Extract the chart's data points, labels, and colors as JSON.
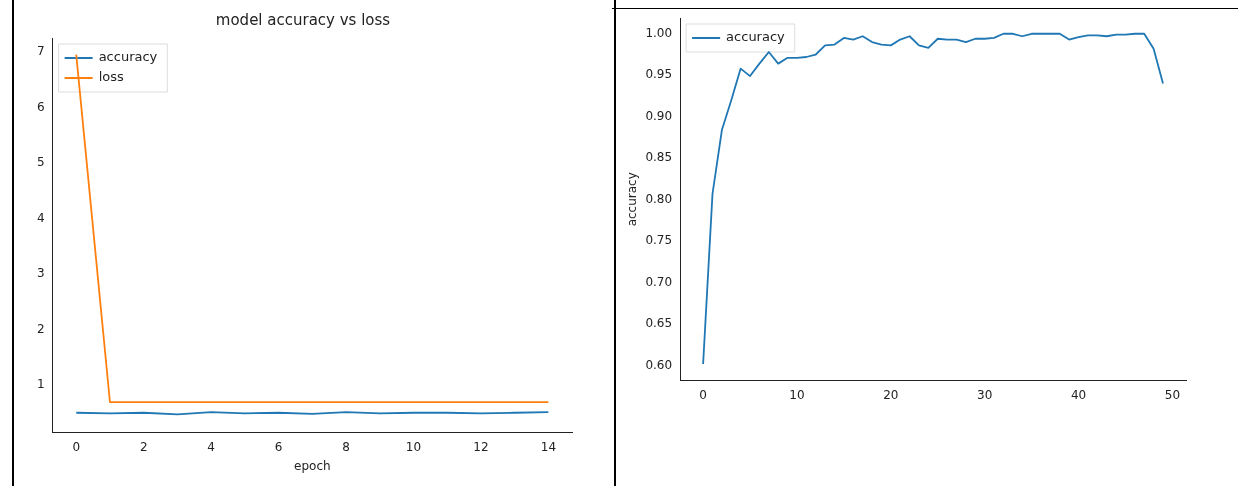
{
  "chart_data": [
    {
      "type": "line",
      "title": "model accuracy vs loss",
      "xlabel": "epoch",
      "x": [
        0,
        1,
        2,
        3,
        4,
        5,
        6,
        7,
        8,
        9,
        10,
        11,
        12,
        13,
        14
      ],
      "series": [
        {
          "name": "accuracy",
          "color": "#1f77b4",
          "values": [
            0.5,
            0.49,
            0.5,
            0.47,
            0.51,
            0.49,
            0.5,
            0.48,
            0.51,
            0.49,
            0.5,
            0.5,
            0.49,
            0.5,
            0.51
          ]
        },
        {
          "name": "loss",
          "color": "#ff7f0e",
          "values": [
            6.95,
            0.69,
            0.69,
            0.69,
            0.69,
            0.69,
            0.69,
            0.69,
            0.69,
            0.69,
            0.69,
            0.69,
            0.69,
            0.69,
            0.69
          ]
        }
      ],
      "xlim": [
        -0.7,
        14.7
      ],
      "xticks": [
        0,
        2,
        4,
        6,
        8,
        10,
        12,
        14
      ],
      "ylim": [
        0.15,
        7.25
      ],
      "yticks": [
        1,
        2,
        3,
        4,
        5,
        6,
        7
      ],
      "legend": "top left",
      "marker": "none",
      "line_style": "solid",
      "grid": false
    },
    {
      "type": "line",
      "ylabel": "accuracy",
      "x": [
        0,
        1,
        2,
        3,
        4,
        5,
        6,
        7,
        8,
        9,
        10,
        11,
        12,
        13,
        14,
        15,
        16,
        17,
        18,
        19,
        20,
        21,
        22,
        23,
        24,
        25,
        26,
        27,
        28,
        29,
        30,
        31,
        32,
        33,
        34,
        35,
        36,
        37,
        38,
        39,
        40,
        41,
        42,
        43,
        44,
        45,
        46,
        47,
        48,
        49
      ],
      "series": [
        {
          "name": "accuracy",
          "color": "#1f77b4",
          "values": [
            0.602,
            0.807,
            0.884,
            0.92,
            0.958,
            0.949,
            0.964,
            0.978,
            0.964,
            0.971,
            0.971,
            0.972,
            0.975,
            0.986,
            0.987,
            0.995,
            0.993,
            0.997,
            0.99,
            0.987,
            0.986,
            0.993,
            0.997,
            0.986,
            0.983,
            0.994,
            0.993,
            0.993,
            0.99,
            0.994,
            0.994,
            0.995,
            1.0,
            1.0,
            0.997,
            1.0,
            1.0,
            1.0,
            1.0,
            0.993,
            0.996,
            0.998,
            0.998,
            0.997,
            0.999,
            0.999,
            1.0,
            1.0,
            0.982,
            0.94
          ]
        }
      ],
      "xlim": [
        -2.45,
        51.45
      ],
      "xticks": [
        0,
        10,
        20,
        30,
        40,
        50
      ],
      "ylim": [
        0.582,
        1.019
      ],
      "yticks": [
        {
          "value": 0.6,
          "label": "0.60"
        },
        {
          "value": 0.65,
          "label": "0.65"
        },
        {
          "value": 0.7,
          "label": "0.70"
        },
        {
          "value": 0.75,
          "label": "0.75"
        },
        {
          "value": 0.8,
          "label": "0.80"
        },
        {
          "value": 0.85,
          "label": "0.85"
        },
        {
          "value": 0.9,
          "label": "0.90"
        },
        {
          "value": 0.95,
          "label": "0.95"
        },
        {
          "value": 1.0,
          "label": "1.00"
        }
      ],
      "legend": "top left",
      "marker": "none",
      "line_style": "solid",
      "grid": false
    }
  ]
}
